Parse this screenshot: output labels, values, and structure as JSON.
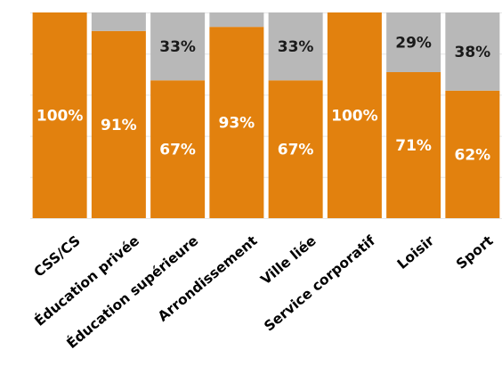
{
  "chart_data": {
    "type": "bar",
    "stacked": true,
    "percent_stacked": true,
    "categories": [
      "CSS/CS",
      "Éducation privée",
      "Éducation supérieure",
      "Arrondissement",
      "Ville liée",
      "Service corporatif",
      "Loisir",
      "Sport"
    ],
    "series": [
      {
        "color": "#E2810E",
        "values": [
          100,
          91,
          67,
          93,
          67,
          100,
          71,
          62
        ],
        "labels": [
          "100%",
          "91%",
          "67%",
          "93%",
          "67%",
          "100%",
          "71%",
          "62%"
        ]
      },
      {
        "color": "#B8B8B8",
        "values": [
          0,
          9,
          33,
          7,
          33,
          0,
          29,
          38
        ],
        "labels": [
          "",
          "",
          "33%",
          "",
          "33%",
          "",
          "29%",
          "38%"
        ]
      }
    ],
    "ylim": [
      0,
      100
    ],
    "grid": true,
    "legend": "none"
  }
}
